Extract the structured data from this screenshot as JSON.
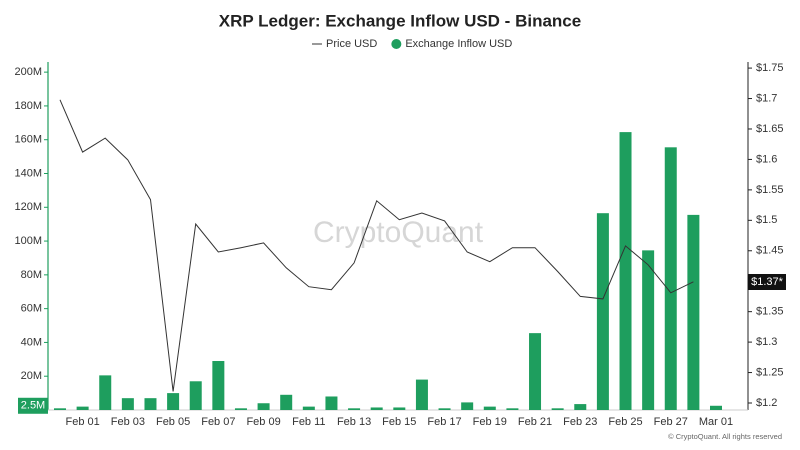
{
  "chart_data": {
    "type": "combo",
    "title": "XRP Ledger: Exchange Inflow USD - Binance",
    "watermark": "CryptoQuant",
    "copyright": "© CryptoQuant. All rights reserved",
    "categories": [
      null,
      "Feb 01",
      null,
      "Feb 03",
      null,
      "Feb 05",
      null,
      "Feb 07",
      null,
      "Feb 09",
      null,
      "Feb 11",
      null,
      "Feb 13",
      null,
      "Feb 15",
      null,
      "Feb 17",
      null,
      "Feb 19",
      null,
      "Feb 21",
      null,
      "Feb 23",
      null,
      "Feb 25",
      null,
      "Feb 27",
      null,
      "Mar 01"
    ],
    "series": [
      {
        "name": "Price USD",
        "type": "line",
        "axis": "y2",
        "color": "#333333",
        "values": [
          1.698,
          1.612,
          1.635,
          1.599,
          1.534,
          1.219,
          1.494,
          1.448,
          1.455,
          1.463,
          1.422,
          1.391,
          1.386,
          1.43,
          1.532,
          1.501,
          1.512,
          1.499,
          1.448,
          1.432,
          1.455,
          1.455,
          1.416,
          1.375,
          1.371,
          1.458,
          1.427,
          1.381,
          1.399,
          null
        ]
      },
      {
        "name": "Exchange Inflow USD",
        "type": "bar",
        "axis": "y",
        "color": "#1e9e5e",
        "values": [
          1000000,
          2000000,
          20500000,
          7000000,
          7000000,
          10000000,
          17000000,
          29000000,
          1000000,
          4000000,
          9000000,
          2000000,
          8000000,
          1000000,
          1500000,
          1500000,
          18000000,
          1000000,
          4500000,
          2000000,
          1000000,
          45500000,
          1000000,
          3500000,
          116500000,
          164500000,
          94500000,
          155500000,
          115500000,
          2500000
        ]
      }
    ],
    "annotations": [
      "2.5M",
      "$1.37*"
    ],
    "ylim": [
      0,
      206000000
    ],
    "yticks": [
      {
        "value": 20000000,
        "label": "20M"
      },
      {
        "value": 40000000,
        "label": "40M"
      },
      {
        "value": 60000000,
        "label": "60M"
      },
      {
        "value": 80000000,
        "label": "80M"
      },
      {
        "value": 100000000,
        "label": "100M"
      },
      {
        "value": 120000000,
        "label": "120M"
      },
      {
        "value": 140000000,
        "label": "140M"
      },
      {
        "value": 160000000,
        "label": "160M"
      },
      {
        "value": 180000000,
        "label": "180M"
      },
      {
        "value": 200000000,
        "label": "200M"
      }
    ],
    "y2lim": [
      1.1885,
      1.76
    ],
    "y2ticks": [
      {
        "value": 1.2,
        "label": "$1.2"
      },
      {
        "value": 1.25,
        "label": "$1.25"
      },
      {
        "value": 1.3,
        "label": "$1.3"
      },
      {
        "value": 1.35,
        "label": "$1.35"
      },
      {
        "value": 1.4,
        "label": "$1.4"
      },
      {
        "value": 1.45,
        "label": "$1.45"
      },
      {
        "value": 1.5,
        "label": "$1.5"
      },
      {
        "value": 1.55,
        "label": "$1.55"
      },
      {
        "value": 1.6,
        "label": "$1.6"
      },
      {
        "value": 1.65,
        "label": "$1.65"
      },
      {
        "value": 1.7,
        "label": "$1.7"
      },
      {
        "value": 1.75,
        "label": "$1.75"
      }
    ]
  }
}
